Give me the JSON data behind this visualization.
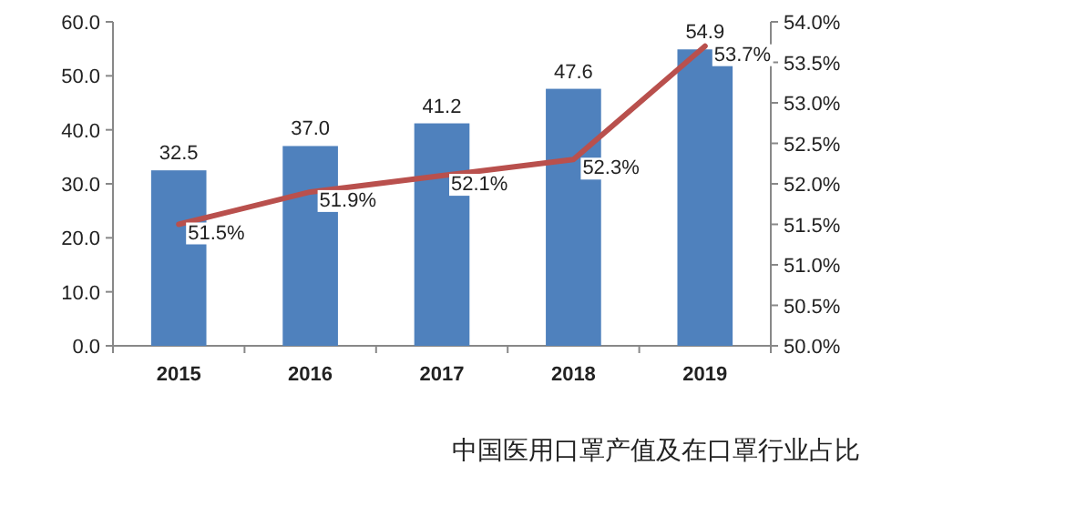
{
  "chart_data": {
    "type": "bar",
    "title": "中国医用口罩产值及在口罩行业占比",
    "categories": [
      "2015",
      "2016",
      "2017",
      "2018",
      "2019"
    ],
    "series": [
      {
        "color": "#4f81bd",
        "values": [
          32.5,
          37.0,
          41.2,
          47.6,
          54.9
        ],
        "value_labels": [
          "32.5",
          "37.0",
          "41.2",
          "47.6",
          "54.9"
        ]
      },
      {
        "type": "line",
        "axis": "y2",
        "color": "#b9504d",
        "values": [
          51.5,
          51.9,
          52.1,
          52.3,
          53.7
        ],
        "value_labels": [
          "51.5%",
          "51.9%",
          "52.1%",
          "52.3%",
          "53.7%"
        ]
      }
    ],
    "ylim": [
      0,
      60
    ],
    "yticks": [
      {
        "value": 0,
        "label": "0.0"
      },
      {
        "value": 10,
        "label": "10.0"
      },
      {
        "value": 20,
        "label": "20.0"
      },
      {
        "value": 30,
        "label": "30.0"
      },
      {
        "value": 40,
        "label": "40.0"
      },
      {
        "value": 50,
        "label": "50.0"
      },
      {
        "value": 60,
        "label": "60.0"
      }
    ],
    "y2lim": [
      50,
      54
    ],
    "y2ticks": [
      {
        "value": 50,
        "label": "50.0%"
      },
      {
        "value": 50.5,
        "label": "50.5%"
      },
      {
        "value": 51,
        "label": "51.0%"
      },
      {
        "value": 51.5,
        "label": "51.5%"
      },
      {
        "value": 52,
        "label": "52.0%"
      },
      {
        "value": 52.5,
        "label": "52.5%"
      },
      {
        "value": 53,
        "label": "53.0%"
      },
      {
        "value": 53.5,
        "label": "53.5%"
      },
      {
        "value": 54,
        "label": "54.0%"
      }
    ]
  }
}
